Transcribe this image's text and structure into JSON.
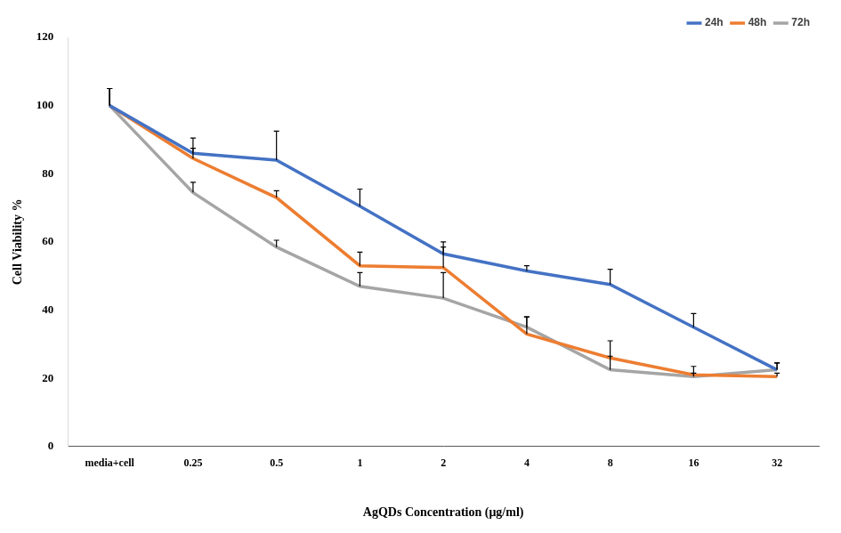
{
  "chart_data": {
    "type": "line",
    "x_label": "AgQDs Concentration (μg/ml)",
    "y_label": "Cell Viability %",
    "categories": [
      "media+cell",
      "0.25",
      "0.5",
      "1",
      "2",
      "4",
      "8",
      "16",
      "32"
    ],
    "series": [
      {
        "name": "24h",
        "color": "#4472c4",
        "values": [
          100,
          86,
          84,
          70.5,
          56.5,
          51.5,
          47.5,
          35,
          22.5
        ],
        "errors": [
          5,
          4.5,
          8.5,
          5,
          3.5,
          1.5,
          4.5,
          4,
          2
        ]
      },
      {
        "name": "48h",
        "color": "#ed7d31",
        "values": [
          100,
          84.5,
          73,
          53,
          52.5,
          33,
          26,
          21,
          20.5
        ],
        "errors": [
          5,
          3,
          2,
          4,
          6,
          5,
          5,
          2.5,
          1
        ]
      },
      {
        "name": "72h",
        "color": "#a5a5a5",
        "values": [
          100,
          74.5,
          58.5,
          47,
          43.5,
          35,
          22.5,
          20.5,
          22.5
        ],
        "errors": [
          5,
          3,
          2,
          4,
          7.5,
          3,
          4,
          1,
          2
        ]
      }
    ],
    "ylim": [
      0,
      120
    ],
    "yticks": [
      0,
      20,
      40,
      60,
      80,
      100,
      120
    ],
    "grid": false,
    "legend": "top-right"
  }
}
